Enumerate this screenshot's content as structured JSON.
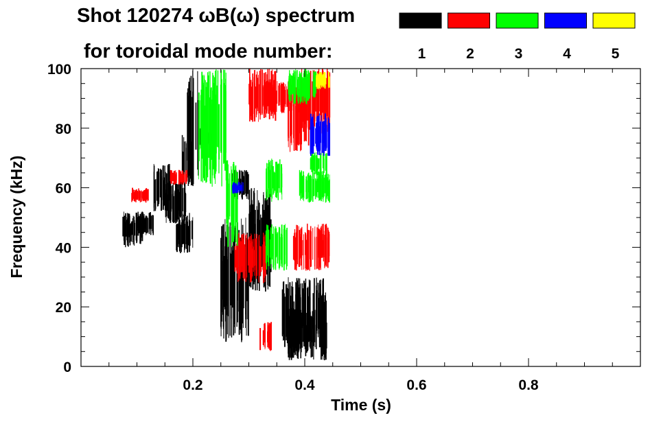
{
  "chart_data": {
    "type": "scatter",
    "title_line1": "Shot 120274 ωB(ω) spectrum",
    "title_line2": "for toroidal mode number:",
    "xlabel": "Time (s)",
    "ylabel": "Frequency (kHz)",
    "xlim": [
      0.0,
      1.0
    ],
    "ylim": [
      0,
      100
    ],
    "xticks": [
      0.2,
      0.4,
      0.6,
      0.8
    ],
    "xtick_labels": [
      "0.2",
      "0.4",
      "0.6",
      "0.8"
    ],
    "yticks": [
      0,
      20,
      40,
      60,
      80,
      100
    ],
    "ytick_labels": [
      "0",
      "20",
      "40",
      "60",
      "80",
      "100"
    ],
    "grid": false,
    "legend_position": "top-right",
    "series": [
      {
        "name": "1",
        "color": "#000000",
        "blobs": [
          {
            "x": [
              0.075,
              0.11
            ],
            "y": [
              40,
              52
            ]
          },
          {
            "x": [
              0.1,
              0.13
            ],
            "y": [
              44,
              52
            ]
          },
          {
            "x": [
              0.13,
              0.16
            ],
            "y": [
              52,
              68
            ]
          },
          {
            "x": [
              0.15,
              0.19
            ],
            "y": [
              48,
              62
            ]
          },
          {
            "x": [
              0.18,
              0.2
            ],
            "y": [
              60,
              78
            ]
          },
          {
            "x": [
              0.17,
              0.2
            ],
            "y": [
              38,
              52
            ]
          },
          {
            "x": [
              0.19,
              0.21
            ],
            "y": [
              60,
              100
            ]
          },
          {
            "x": [
              0.21,
              0.235
            ],
            "y": [
              74,
              80
            ]
          },
          {
            "x": [
              0.25,
              0.3
            ],
            "y": [
              8,
              50
            ]
          },
          {
            "x": [
              0.27,
              0.3
            ],
            "y": [
              56,
              66
            ]
          },
          {
            "x": [
              0.3,
              0.34
            ],
            "y": [
              25,
              60
            ]
          },
          {
            "x": [
              0.36,
              0.44
            ],
            "y": [
              6,
              30
            ]
          },
          {
            "x": [
              0.37,
              0.44
            ],
            "y": [
              2,
              20
            ]
          }
        ]
      },
      {
        "name": "2",
        "color": "#ff0000",
        "blobs": [
          {
            "x": [
              0.09,
              0.12
            ],
            "y": [
              55,
              60
            ]
          },
          {
            "x": [
              0.16,
              0.19
            ],
            "y": [
              61,
              66
            ]
          },
          {
            "x": [
              0.275,
              0.33
            ],
            "y": [
              28,
              45
            ]
          },
          {
            "x": [
              0.3,
              0.35
            ],
            "y": [
              82,
              100
            ]
          },
          {
            "x": [
              0.33,
              0.4
            ],
            "y": [
              85,
              96
            ]
          },
          {
            "x": [
              0.37,
              0.41
            ],
            "y": [
              72,
              95
            ]
          },
          {
            "x": [
              0.39,
              0.445
            ],
            "y": [
              78,
              100
            ]
          },
          {
            "x": [
              0.38,
              0.445
            ],
            "y": [
              32,
              48
            ]
          },
          {
            "x": [
              0.32,
              0.34
            ],
            "y": [
              5,
              15
            ]
          }
        ]
      },
      {
        "name": "3",
        "color": "#00ff00",
        "blobs": [
          {
            "x": [
              0.21,
              0.26
            ],
            "y": [
              60,
              100
            ]
          },
          {
            "x": [
              0.26,
              0.28
            ],
            "y": [
              40,
              70
            ]
          },
          {
            "x": [
              0.33,
              0.37
            ],
            "y": [
              32,
              48
            ]
          },
          {
            "x": [
              0.37,
              0.42
            ],
            "y": [
              88,
              100
            ]
          },
          {
            "x": [
              0.39,
              0.445
            ],
            "y": [
              55,
              66
            ]
          },
          {
            "x": [
              0.41,
              0.44
            ],
            "y": [
              64,
              72
            ]
          },
          {
            "x": [
              0.33,
              0.36
            ],
            "y": [
              55,
              70
            ]
          }
        ]
      },
      {
        "name": "4",
        "color": "#0000ff",
        "blobs": [
          {
            "x": [
              0.41,
              0.445
            ],
            "y": [
              70,
              85
            ]
          },
          {
            "x": [
              0.27,
              0.29
            ],
            "y": [
              58,
              62
            ]
          }
        ]
      },
      {
        "name": "5",
        "color": "#ffff00",
        "blobs": [
          {
            "x": [
              0.42,
              0.445
            ],
            "y": [
              93,
              99
            ]
          }
        ]
      }
    ]
  }
}
